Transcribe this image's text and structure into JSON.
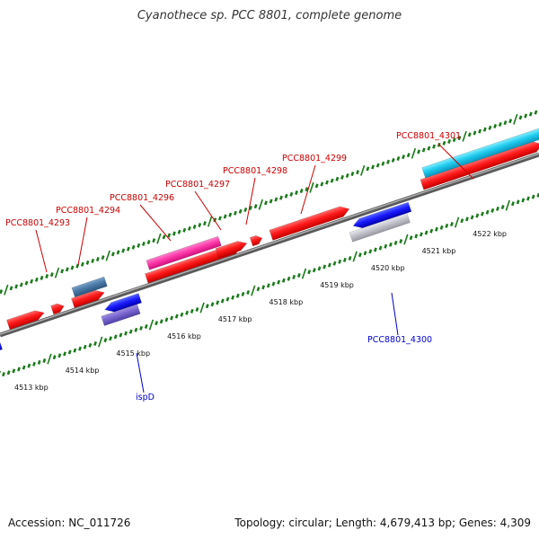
{
  "title": "Cyanothece sp. PCC 8801, complete genome",
  "footer": {
    "accession": "Accession: NC_011726",
    "summary": "Topology: circular; Length: 4,679,413 bp; Genes: 4,309"
  },
  "colors": {
    "backbone": "#808080",
    "tick": "#1a7a1a",
    "forward_label": "#cc0000",
    "reverse_label": "#0000cc",
    "forward_cds": "#ff0000",
    "reverse_cds": "#0000ff",
    "trna_forward": "#ff33aa",
    "trna_reverse": "#7766cc",
    "rrna": "#22ccee",
    "misc_forward": "#4a7aa8",
    "misc_reverse": "#c0c0c8"
  },
  "ruler_labels": [
    "4513 kbp",
    "4514 kbp",
    "4515 kbp",
    "4516 kbp",
    "4517 kbp",
    "4518 kbp",
    "4519 kbp",
    "4520 kbp",
    "4521 kbp",
    "4522 kbp"
  ],
  "forward_labels": [
    "PCC8801_4293",
    "PCC8801_4294",
    "PCC8801_4296",
    "PCC8801_4297",
    "PCC8801_4298",
    "PCC8801_4299",
    "PCC8801_4301"
  ],
  "reverse_labels": [
    "ispD",
    "PCC8801_4300"
  ]
}
